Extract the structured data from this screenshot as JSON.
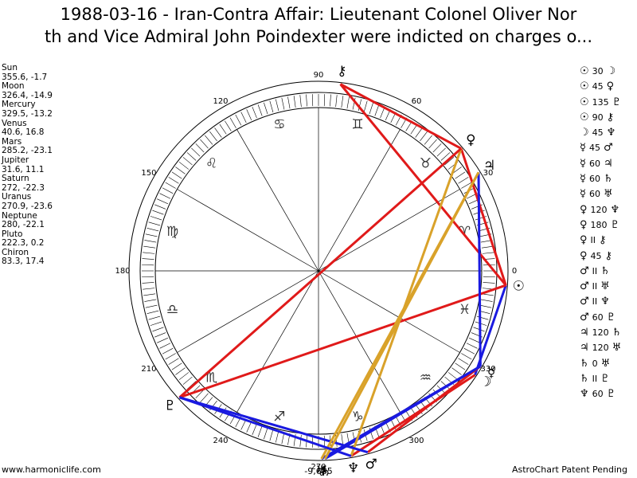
{
  "title_lines": [
    "1988-03-16 - Iran-Contra Affair: Lieutenant Colonel Oliver Nor",
    "th and Vice Admiral John Poindexter were indicted on charges o..."
  ],
  "planets": [
    {
      "name": "Sun",
      "glyph": "☉",
      "lon": 355.6,
      "lat": -1.7
    },
    {
      "name": "Moon",
      "glyph": "☽",
      "lon": 326.4,
      "lat": -14.9
    },
    {
      "name": "Mercury",
      "glyph": "☿",
      "lon": 329.5,
      "lat": -13.2
    },
    {
      "name": "Venus",
      "glyph": "♀",
      "lon": 40.6,
      "lat": 16.8
    },
    {
      "name": "Mars",
      "glyph": "♂",
      "lon": 285.2,
      "lat": -23.1
    },
    {
      "name": "Jupiter",
      "glyph": "♃",
      "lon": 31.6,
      "lat": 11.1
    },
    {
      "name": "Saturn",
      "glyph": "♄",
      "lon": 272.0,
      "lat": -22.3
    },
    {
      "name": "Uranus",
      "glyph": "♅",
      "lon": 270.9,
      "lat": -23.6
    },
    {
      "name": "Neptune",
      "glyph": "♆",
      "lon": 280.0,
      "lat": -22.1
    },
    {
      "name": "Pluto",
      "glyph": "♇",
      "lon": 222.3,
      "lat": 0.2
    },
    {
      "name": "Chiron",
      "glyph": "⚷",
      "lon": 83.3,
      "lat": 17.4
    }
  ],
  "aspects": [
    {
      "from": "☉",
      "aspect": 30,
      "to": "☽"
    },
    {
      "from": "☉",
      "aspect": 45,
      "to": "♀"
    },
    {
      "from": "☉",
      "aspect": 135,
      "to": "♇"
    },
    {
      "from": "☉",
      "aspect": 90,
      "to": "⚷"
    },
    {
      "from": "☽",
      "aspect": 45,
      "to": "♆"
    },
    {
      "from": "☿",
      "aspect": 45,
      "to": "♂"
    },
    {
      "from": "☿",
      "aspect": 60,
      "to": "♃"
    },
    {
      "from": "☿",
      "aspect": 60,
      "to": "♄"
    },
    {
      "from": "☿",
      "aspect": 60,
      "to": "♅"
    },
    {
      "from": "♀",
      "aspect": 120,
      "to": "♆"
    },
    {
      "from": "♀",
      "aspect": 180,
      "to": "♇"
    },
    {
      "from": "♀",
      "aspect": "II",
      "to": "⚷"
    },
    {
      "from": "♀",
      "aspect": 45,
      "to": "⚷"
    },
    {
      "from": "♂",
      "aspect": "II",
      "to": "♄"
    },
    {
      "from": "♂",
      "aspect": "II",
      "to": "♅"
    },
    {
      "from": "♂",
      "aspect": "II",
      "to": "♆"
    },
    {
      "from": "♂",
      "aspect": 60,
      "to": "♇"
    },
    {
      "from": "♃",
      "aspect": 120,
      "to": "♄"
    },
    {
      "from": "♃",
      "aspect": 120,
      "to": "♅"
    },
    {
      "from": "♄",
      "aspect": 0,
      "to": "♅"
    },
    {
      "from": "♄",
      "aspect": "II",
      "to": "♇"
    },
    {
      "from": "♆",
      "aspect": 60,
      "to": "♇"
    }
  ],
  "aspect_colors": {
    "30": "#1a1ae0",
    "60": "#1a1ae0",
    "45": "#e01a1a",
    "90": "#e01a1a",
    "135": "#e01a1a",
    "180": "#e01a1a",
    "120": "#d9a22a"
  },
  "signs": [
    "♈",
    "♉",
    "♊",
    "♋",
    "♌",
    "♍",
    "♎",
    "♏",
    "♐",
    "♑",
    "♒",
    "♓"
  ],
  "degree_ticks": [
    0,
    30,
    60,
    90,
    120,
    150,
    180,
    210,
    240,
    270,
    300,
    330
  ],
  "bottom_value": "-9,685",
  "footer_left": "www.harmoniclife.com",
  "footer_right": "AstroChart Patent Pending"
}
